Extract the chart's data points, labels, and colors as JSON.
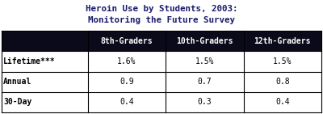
{
  "title_line1": "Heroin Use by Students, 2003:",
  "title_line2": "Monitoring the Future Survey",
  "title_color": "#1a1a6e",
  "col_headers": [
    "8th-Graders",
    "10th-Graders",
    "12th-Graders"
  ],
  "row_headers": [
    "Lifetime***",
    "Annual",
    "30-Day"
  ],
  "row_bold": [
    true,
    false,
    false
  ],
  "values": [
    [
      "1.6%",
      "1.5%",
      "1.5%"
    ],
    [
      "0.9",
      "0.7",
      "0.8"
    ],
    [
      "0.4",
      "0.3",
      "0.4"
    ]
  ],
  "header_bg": "#0a0a1a",
  "header_text": "#ffffff",
  "border_color": "#000000",
  "cell_text_color": "#000000",
  "fig_bg": "#ffffff",
  "title_fontsize": 7.8,
  "cell_fontsize": 7.0
}
